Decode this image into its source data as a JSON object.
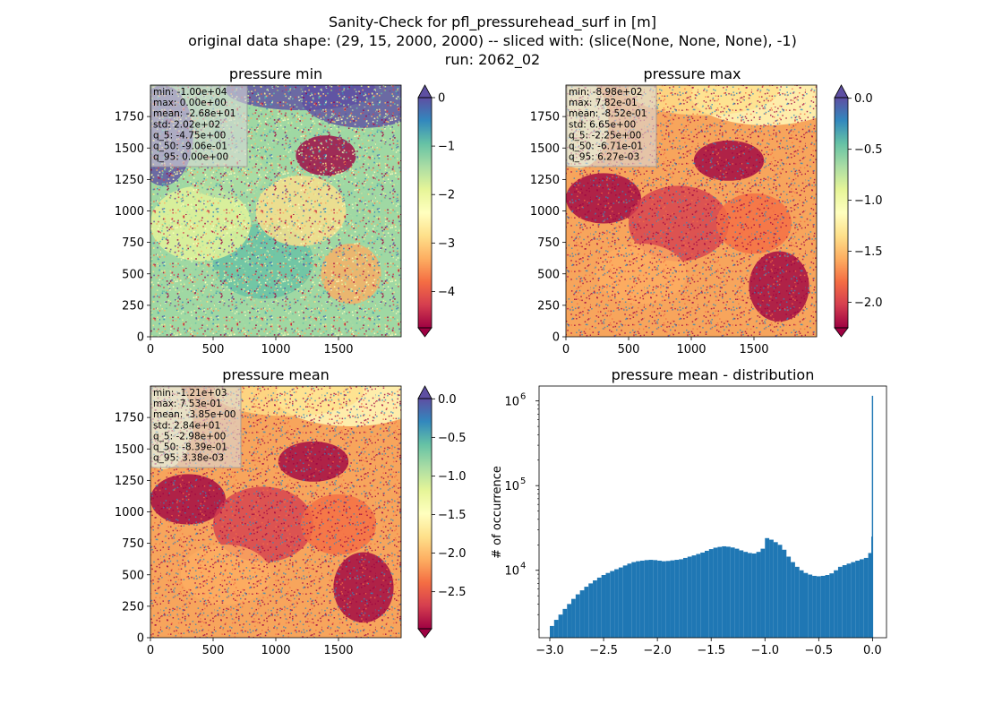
{
  "figure": {
    "title_lines": [
      "Sanity-Check for pfl_pressurehead_surf in [m]",
      "original data shape: (29, 15, 2000, 2000) -- sliced with: (slice(None, None, None), -1)",
      "run: 2062_02"
    ]
  },
  "colors": {
    "spectral": [
      "#9e0142",
      "#d53e4f",
      "#f46d43",
      "#fdae61",
      "#fee08b",
      "#ffffbf",
      "#e6f598",
      "#abdda4",
      "#66c2a5",
      "#3288bd",
      "#5e4fa2"
    ],
    "hist_bar": "#1f77b4"
  },
  "panels": [
    {
      "title": "pressure min",
      "xticks": [
        "0",
        "500",
        "1000",
        "1500"
      ],
      "yticks": [
        "0",
        "250",
        "500",
        "750",
        "1000",
        "1250",
        "1500",
        "1750"
      ],
      "stats": [
        "min: -1.00e+04",
        "max: 0.00e+00",
        "mean: -2.68e+01",
        "std: 2.02e+02",
        "q_5: -4.75e+00",
        "q_50: -9.06e-01",
        "q_95: 0.00e+00"
      ],
      "colorbar": {
        "vmin": -4.75,
        "vmax": 0,
        "ticks": [
          "0",
          "−1",
          "−2",
          "−3",
          "−4"
        ],
        "tick_values": [
          0,
          -1,
          -2,
          -3,
          -4
        ],
        "extend_top_color": "#5e4fa2",
        "extend_bottom_color": "#9e0142"
      }
    },
    {
      "title": "pressure max",
      "xticks": [
        "0",
        "500",
        "1000",
        "1500"
      ],
      "yticks": [
        "0",
        "250",
        "500",
        "750",
        "1000",
        "1250",
        "1500",
        "1750"
      ],
      "stats": [
        "min: -8.98e+02",
        "max: 7.82e-01",
        "mean: -8.52e-01",
        "std: 6.65e+00",
        "q_5: -2.25e+00",
        "q_50: -6.71e-01",
        "q_95: 6.27e-03"
      ],
      "colorbar": {
        "vmin": -2.25,
        "vmax": 0.00627,
        "ticks": [
          "0.0",
          "−0.5",
          "−1.0",
          "−1.5",
          "−2.0"
        ],
        "tick_values": [
          0,
          -0.5,
          -1.0,
          -1.5,
          -2.0
        ],
        "extend_top_color": "#5e4fa2",
        "extend_bottom_color": "#9e0142"
      }
    },
    {
      "title": "pressure mean",
      "xticks": [
        "0",
        "500",
        "1000",
        "1500"
      ],
      "yticks": [
        "0",
        "250",
        "500",
        "750",
        "1000",
        "1250",
        "1500",
        "1750"
      ],
      "stats": [
        "min: -1.21e+03",
        "max: 7.53e-01",
        "mean: -3.85e+00",
        "std: 2.84e+01",
        "q_5: -2.98e+00",
        "q_50: -8.39e-01",
        "q_95: 3.38e-03"
      ],
      "colorbar": {
        "vmin": -2.98,
        "vmax": 0.00338,
        "ticks": [
          "0.0",
          "−0.5",
          "−1.0",
          "−1.5",
          "−2.0",
          "−2.5"
        ],
        "tick_values": [
          0,
          -0.5,
          -1.0,
          -1.5,
          -2.0,
          -2.5
        ],
        "extend_top_color": "#5e4fa2",
        "extend_bottom_color": "#9e0142"
      }
    }
  ],
  "histogram": {
    "title": "pressure mean - distribution",
    "ylabel": "# of occurrence",
    "xticks": [
      "−3.0",
      "−2.5",
      "−2.0",
      "−1.5",
      "−1.0",
      "−0.5",
      "0.0"
    ],
    "ytick_base": "10",
    "ytick_exps": [
      "4",
      "5",
      "6"
    ]
  },
  "chart_data": [
    {
      "type": "heatmap",
      "title": "pressure min",
      "xlim": [
        0,
        2000
      ],
      "ylim": [
        0,
        2000
      ],
      "color_range": [
        -4.75,
        0
      ],
      "colormap": "Spectral"
    },
    {
      "type": "heatmap",
      "title": "pressure max",
      "xlim": [
        0,
        2000
      ],
      "ylim": [
        0,
        2000
      ],
      "color_range": [
        -2.25,
        0.00627
      ],
      "colormap": "Spectral"
    },
    {
      "type": "heatmap",
      "title": "pressure mean",
      "xlim": [
        0,
        2000
      ],
      "ylim": [
        0,
        2000
      ],
      "color_range": [
        -2.98,
        0.00338
      ],
      "colormap": "Spectral"
    },
    {
      "type": "bar",
      "title": "pressure mean - distribution",
      "ylabel": "# of occurrence",
      "yscale": "log",
      "xlim": [
        -3.1,
        0.13
      ],
      "ylim": [
        1600,
        1500000
      ],
      "bins_x": [
        -2.98,
        -2.94,
        -2.9,
        -2.86,
        -2.82,
        -2.78,
        -2.74,
        -2.7,
        -2.66,
        -2.62,
        -2.58,
        -2.54,
        -2.5,
        -2.46,
        -2.42,
        -2.38,
        -2.34,
        -2.3,
        -2.26,
        -2.22,
        -2.18,
        -2.14,
        -2.1,
        -2.06,
        -2.02,
        -1.98,
        -1.94,
        -1.9,
        -1.86,
        -1.82,
        -1.78,
        -1.74,
        -1.7,
        -1.66,
        -1.62,
        -1.58,
        -1.54,
        -1.5,
        -1.46,
        -1.42,
        -1.38,
        -1.34,
        -1.3,
        -1.26,
        -1.22,
        -1.18,
        -1.14,
        -1.1,
        -1.06,
        -1.02,
        -0.98,
        -0.94,
        -0.9,
        -0.86,
        -0.82,
        -0.78,
        -0.74,
        -0.7,
        -0.66,
        -0.62,
        -0.58,
        -0.54,
        -0.5,
        -0.46,
        -0.42,
        -0.38,
        -0.34,
        -0.3,
        -0.26,
        -0.22,
        -0.18,
        -0.14,
        -0.1,
        -0.06,
        -0.02,
        -0.005,
        0.0
      ],
      "counts": [
        2200,
        2600,
        3000,
        3500,
        4000,
        4600,
        5200,
        5800,
        6400,
        7000,
        7600,
        8200,
        8800,
        9300,
        9800,
        10300,
        10800,
        11400,
        12000,
        12500,
        12800,
        13000,
        13200,
        13300,
        13200,
        13000,
        12800,
        12900,
        13100,
        13300,
        13500,
        14000,
        14500,
        15000,
        15600,
        16200,
        17000,
        17800,
        18500,
        18900,
        19200,
        19000,
        18600,
        18000,
        17200,
        16500,
        16000,
        15800,
        16500,
        18000,
        24000,
        23000,
        21500,
        20000,
        17500,
        14500,
        12500,
        11000,
        10000,
        9300,
        8900,
        8600,
        8500,
        8600,
        8800,
        9200,
        10000,
        11000,
        11500,
        12000,
        12500,
        13000,
        13500,
        14000,
        16000,
        25000,
        1150000
      ]
    }
  ]
}
